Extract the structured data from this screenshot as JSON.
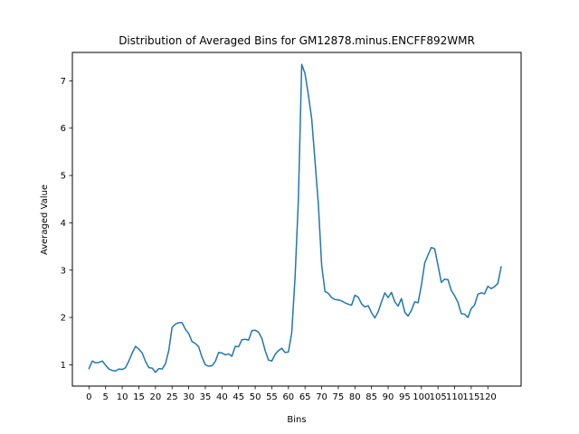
{
  "chart_data": {
    "type": "line",
    "title": "Distribution of Averaged Bins for GM12878.minus.ENCFF892WMR",
    "xlabel": "Bins",
    "ylabel": "Averaged Value",
    "xlim": [
      -5,
      130
    ],
    "ylim": [
      0.55,
      7.6
    ],
    "xticks": [
      0,
      5,
      10,
      15,
      20,
      25,
      30,
      35,
      40,
      45,
      50,
      55,
      60,
      65,
      70,
      75,
      80,
      85,
      90,
      95,
      100,
      105,
      110,
      115,
      120
    ],
    "xtick_labels": [
      "0",
      "5",
      "10",
      "15",
      "20",
      "25",
      "30",
      "35",
      "40",
      "45",
      "50",
      "55",
      "60",
      "65",
      "70",
      "75",
      "80",
      "85",
      "90",
      "95",
      "100",
      "105",
      "110",
      "115",
      "120"
    ],
    "yticks": [
      1,
      2,
      3,
      4,
      5,
      6,
      7
    ],
    "ytick_labels": [
      "1",
      "2",
      "3",
      "4",
      "5",
      "6",
      "7"
    ],
    "grid": false,
    "series": [
      {
        "color": "#1f77b4",
        "x": [
          0,
          1,
          2,
          3,
          4,
          5,
          6,
          7,
          8,
          9,
          10,
          11,
          12,
          13,
          14,
          15,
          16,
          17,
          18,
          19,
          20,
          21,
          22,
          23,
          24,
          25,
          26,
          27,
          28,
          29,
          30,
          31,
          32,
          33,
          34,
          35,
          36,
          37,
          38,
          39,
          40,
          41,
          42,
          43,
          44,
          45,
          46,
          47,
          48,
          49,
          50,
          51,
          52,
          53,
          54,
          55,
          56,
          57,
          58,
          59,
          60,
          61,
          62,
          63,
          64,
          65,
          66,
          67,
          68,
          69,
          70,
          71,
          72,
          73,
          74,
          75,
          76,
          77,
          78,
          79,
          80,
          81,
          82,
          83,
          84,
          85,
          86,
          87,
          88,
          89,
          90,
          91,
          92,
          93,
          94,
          95,
          96,
          97,
          98,
          99,
          100,
          101,
          102,
          103,
          104,
          105,
          106,
          107,
          108,
          109,
          110,
          111,
          112,
          113,
          114,
          115,
          116,
          117,
          118,
          119,
          120,
          121,
          122,
          123,
          124
        ],
        "values": [
          0.92,
          1.08,
          1.04,
          1.05,
          1.08,
          0.99,
          0.91,
          0.88,
          0.87,
          0.91,
          0.9,
          0.94,
          1.08,
          1.25,
          1.39,
          1.33,
          1.25,
          1.07,
          0.94,
          0.93,
          0.84,
          0.92,
          0.91,
          1.02,
          1.3,
          1.79,
          1.86,
          1.89,
          1.89,
          1.75,
          1.66,
          1.49,
          1.45,
          1.38,
          1.16,
          1.0,
          0.97,
          0.98,
          1.07,
          1.26,
          1.25,
          1.21,
          1.23,
          1.18,
          1.39,
          1.38,
          1.53,
          1.54,
          1.52,
          1.72,
          1.73,
          1.69,
          1.56,
          1.3,
          1.1,
          1.08,
          1.22,
          1.3,
          1.35,
          1.26,
          1.27,
          1.68,
          2.85,
          4.5,
          7.35,
          7.15,
          6.7,
          6.2,
          5.3,
          4.4,
          3.1,
          2.55,
          2.51,
          2.42,
          2.38,
          2.37,
          2.35,
          2.31,
          2.28,
          2.26,
          2.47,
          2.43,
          2.29,
          2.22,
          2.25,
          2.1,
          1.99,
          2.12,
          2.33,
          2.52,
          2.42,
          2.53,
          2.33,
          2.24,
          2.4,
          2.11,
          2.03,
          2.15,
          2.33,
          2.31,
          2.68,
          3.15,
          3.32,
          3.48,
          3.45,
          3.1,
          2.74,
          2.81,
          2.8,
          2.57,
          2.46,
          2.32,
          2.08,
          2.07,
          2.0,
          2.19,
          2.26,
          2.49,
          2.52,
          2.5,
          2.66,
          2.61,
          2.65,
          2.72,
          3.07
        ]
      }
    ]
  }
}
